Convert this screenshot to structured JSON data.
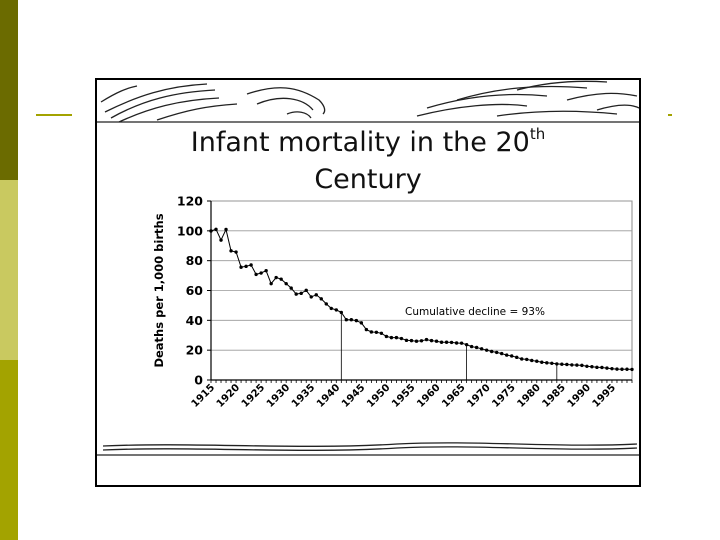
{
  "slide": {
    "title_main": "Infant mortality in the 20",
    "title_sup": "th",
    "title_line2": "Century"
  },
  "colors": {
    "stripe_dark": "#6b6b00",
    "stripe_light": "#c9c960",
    "stripe_mid": "#a3a300"
  },
  "chart_data": {
    "type": "line",
    "ylabel": "Deaths per 1,000 births",
    "xlabel": "",
    "ylim": [
      0,
      120
    ],
    "xlim": [
      1915,
      1999
    ],
    "yticks": [
      0,
      20,
      40,
      60,
      80,
      100,
      120
    ],
    "xticks": [
      1915,
      1920,
      1925,
      1930,
      1935,
      1940,
      1945,
      1950,
      1955,
      1960,
      1965,
      1970,
      1975,
      1980,
      1985,
      1990,
      1995
    ],
    "grid": "horizontal",
    "annotation": "Cumulative decline = 93%",
    "markers_at_years": [
      1941,
      1966,
      1984
    ],
    "series": [
      {
        "x": [
          1915,
          1916,
          1917,
          1918,
          1919,
          1920,
          1921,
          1922,
          1923,
          1924,
          1925,
          1926,
          1927,
          1928,
          1929,
          1930,
          1931,
          1932,
          1933,
          1934,
          1935,
          1936,
          1937,
          1938,
          1939,
          1940,
          1941,
          1942,
          1943,
          1944,
          1945,
          1946,
          1947,
          1948,
          1949,
          1950,
          1951,
          1952,
          1953,
          1954,
          1955,
          1956,
          1957,
          1958,
          1959,
          1960,
          1961,
          1962,
          1963,
          1964,
          1965,
          1966,
          1967,
          1968,
          1969,
          1970,
          1971,
          1972,
          1973,
          1974,
          1975,
          1976,
          1977,
          1978,
          1979,
          1980,
          1981,
          1982,
          1983,
          1984,
          1985,
          1986,
          1987,
          1988,
          1989,
          1990,
          1991,
          1992,
          1993,
          1994,
          1995,
          1996,
          1997,
          1998,
          1999
        ],
        "values": [
          99.9,
          101,
          93.8,
          100.9,
          86.6,
          85.8,
          75.6,
          76.2,
          77.1,
          70.8,
          71.7,
          73.3,
          64.6,
          68.7,
          67.6,
          64.6,
          61.6,
          57.6,
          58.1,
          60.1,
          55.7,
          57.1,
          54.4,
          51,
          48,
          47,
          45.3,
          40.4,
          40.4,
          39.8,
          38.3,
          33.8,
          32.2,
          32,
          31.3,
          29.2,
          28.4,
          28.4,
          27.8,
          26.6,
          26.4,
          26,
          26.3,
          27.1,
          26.4,
          26,
          25.3,
          25.3,
          25.2,
          24.8,
          24.7,
          23.7,
          22.4,
          21.8,
          20.9,
          20,
          19.1,
          18.5,
          17.7,
          16.7,
          16.1,
          15.2,
          14.1,
          13.8,
          13.1,
          12.6,
          11.9,
          11.5,
          11.2,
          10.8,
          10.6,
          10.4,
          10.1,
          10,
          9.8,
          9.2,
          8.9,
          8.5,
          8.4,
          8,
          7.6,
          7.3,
          7.2,
          7.2,
          7.1
        ]
      }
    ]
  }
}
